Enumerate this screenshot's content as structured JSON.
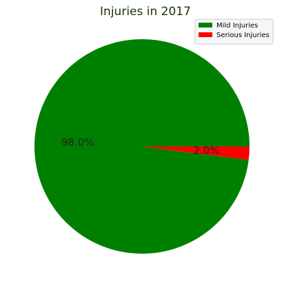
{
  "chart_data": {
    "type": "pie",
    "title": "Injuries in 2017",
    "slices": [
      {
        "label": "Mild Injuries",
        "value": 98.0,
        "pct_label": "98.0%",
        "color": "#008000"
      },
      {
        "label": "Serious Injuries",
        "value": 2.0,
        "pct_label": "2.0%",
        "color": "#ff0000"
      }
    ],
    "start_angle_deg": 0,
    "direction": "counterclockwise",
    "legend": {
      "position": "top-right"
    }
  }
}
